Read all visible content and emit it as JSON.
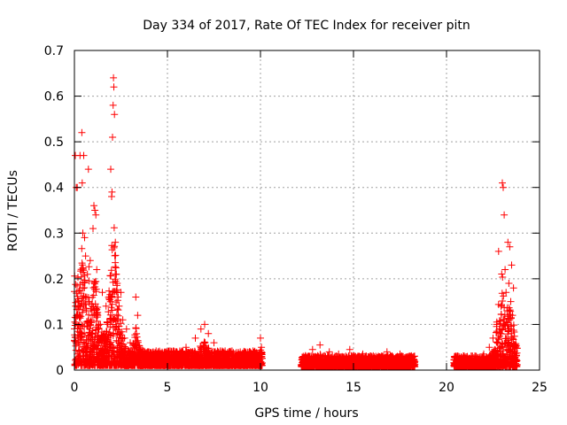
{
  "chart_data": {
    "type": "scatter",
    "title": "Day 334 of 2017, Rate Of TEC Index for receiver pitn",
    "xlabel": "GPS time / hours",
    "ylabel": "ROTI / TECUs",
    "xlim": [
      0,
      25
    ],
    "ylim": [
      0,
      0.7
    ],
    "grid": true,
    "marker": "plus",
    "color": "#ff0000",
    "x_ticks": [
      "0",
      "5",
      "10",
      "15",
      "20",
      "25"
    ],
    "y_ticks": [
      "0",
      "0.1",
      "0.2",
      "0.3",
      "0.4",
      "0.5",
      "0.6",
      "0.7"
    ],
    "series": [
      {
        "name": "ROTI",
        "segments": [
          {
            "x_start": 0.0,
            "x_end": 10.1,
            "baseline": 0.02
          },
          {
            "x_start": 12.2,
            "x_end": 18.3,
            "baseline": 0.015
          },
          {
            "x_start": 20.4,
            "x_end": 23.8,
            "baseline": 0.015
          }
        ],
        "points": [
          [
            0.05,
            0.47
          ],
          [
            0.1,
            0.4
          ],
          [
            0.15,
            0.4
          ],
          [
            0.2,
            0.15
          ],
          [
            0.25,
            0.12
          ],
          [
            0.3,
            0.47
          ],
          [
            0.35,
            0.14
          ],
          [
            0.4,
            0.52
          ],
          [
            0.42,
            0.41
          ],
          [
            0.45,
            0.3
          ],
          [
            0.5,
            0.47
          ],
          [
            0.55,
            0.29
          ],
          [
            0.6,
            0.25
          ],
          [
            0.65,
            0.13
          ],
          [
            0.7,
            0.21
          ],
          [
            0.75,
            0.44
          ],
          [
            0.8,
            0.15
          ],
          [
            0.85,
            0.24
          ],
          [
            0.9,
            0.11
          ],
          [
            0.95,
            0.08
          ],
          [
            1.0,
            0.31
          ],
          [
            1.05,
            0.36
          ],
          [
            1.1,
            0.35
          ],
          [
            1.15,
            0.34
          ],
          [
            1.2,
            0.22
          ],
          [
            1.25,
            0.12
          ],
          [
            1.3,
            0.06
          ],
          [
            1.4,
            0.1
          ],
          [
            1.5,
            0.17
          ],
          [
            1.6,
            0.08
          ],
          [
            1.7,
            0.14
          ],
          [
            1.8,
            0.1
          ],
          [
            1.9,
            0.06
          ],
          [
            1.95,
            0.44
          ],
          [
            2.0,
            0.38
          ],
          [
            2.02,
            0.39
          ],
          [
            2.05,
            0.51
          ],
          [
            2.08,
            0.58
          ],
          [
            2.1,
            0.64
          ],
          [
            2.12,
            0.62
          ],
          [
            2.15,
            0.56
          ],
          [
            2.2,
            0.28
          ],
          [
            2.25,
            0.21
          ],
          [
            2.3,
            0.19
          ],
          [
            2.35,
            0.16
          ],
          [
            2.4,
            0.14
          ],
          [
            2.5,
            0.17
          ],
          [
            2.6,
            0.11
          ],
          [
            2.7,
            0.07
          ],
          [
            2.8,
            0.09
          ],
          [
            3.0,
            0.06
          ],
          [
            3.2,
            0.05
          ],
          [
            3.3,
            0.16
          ],
          [
            3.4,
            0.12
          ],
          [
            3.5,
            0.05
          ],
          [
            3.8,
            0.03
          ],
          [
            4.0,
            0.04
          ],
          [
            4.5,
            0.04
          ],
          [
            5.0,
            0.03
          ],
          [
            5.5,
            0.04
          ],
          [
            6.0,
            0.05
          ],
          [
            6.5,
            0.07
          ],
          [
            6.8,
            0.09
          ],
          [
            7.0,
            0.1
          ],
          [
            7.2,
            0.08
          ],
          [
            7.5,
            0.06
          ],
          [
            8.0,
            0.04
          ],
          [
            8.5,
            0.03
          ],
          [
            9.0,
            0.025
          ],
          [
            9.5,
            0.03
          ],
          [
            10.0,
            0.07
          ],
          [
            10.05,
            0.05
          ],
          [
            12.3,
            0.03
          ],
          [
            12.8,
            0.045
          ],
          [
            13.2,
            0.055
          ],
          [
            13.7,
            0.04
          ],
          [
            14.2,
            0.035
          ],
          [
            14.8,
            0.045
          ],
          [
            15.5,
            0.035
          ],
          [
            16.2,
            0.03
          ],
          [
            16.8,
            0.04
          ],
          [
            17.5,
            0.035
          ],
          [
            18.1,
            0.03
          ],
          [
            20.6,
            0.02
          ],
          [
            21.2,
            0.025
          ],
          [
            21.6,
            0.03
          ],
          [
            22.0,
            0.035
          ],
          [
            22.3,
            0.05
          ],
          [
            22.5,
            0.07
          ],
          [
            22.7,
            0.1
          ],
          [
            22.8,
            0.26
          ],
          [
            22.9,
            0.08
          ],
          [
            23.0,
            0.41
          ],
          [
            23.05,
            0.4
          ],
          [
            23.1,
            0.34
          ],
          [
            23.15,
            0.22
          ],
          [
            23.2,
            0.17
          ],
          [
            23.25,
            0.13
          ],
          [
            23.3,
            0.28
          ],
          [
            23.35,
            0.19
          ],
          [
            23.4,
            0.27
          ],
          [
            23.45,
            0.15
          ],
          [
            23.5,
            0.23
          ],
          [
            23.55,
            0.12
          ],
          [
            23.6,
            0.18
          ]
        ]
      }
    ]
  }
}
